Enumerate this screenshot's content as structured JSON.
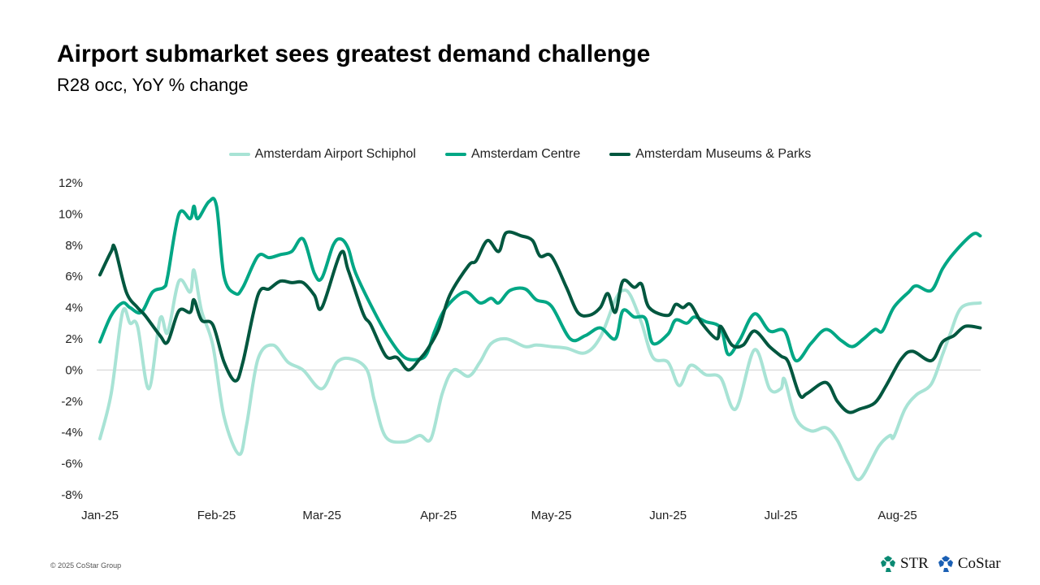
{
  "header": {
    "title": "Airport submarket sees greatest demand challenge",
    "subtitle": "R28 occ, YoY % change"
  },
  "footer": {
    "copyright": "© 2025 CoStar Group",
    "logos": [
      "STR",
      "CoStar"
    ]
  },
  "chart_data": {
    "type": "line",
    "title": "Airport submarket sees greatest demand challenge",
    "subtitle": "R28 occ, YoY % change",
    "xlabel": "",
    "ylabel": "",
    "ylim": [
      -8,
      12
    ],
    "yticks": [
      12,
      10,
      8,
      6,
      4,
      2,
      0,
      -2,
      -4,
      -6,
      -8
    ],
    "ytick_labels": [
      "12%",
      "10%",
      "8%",
      "6%",
      "4%",
      "2%",
      "0%",
      "-2%",
      "-4%",
      "-6%",
      "-8%"
    ],
    "xticks": [
      "2025-01-01",
      "2025-02-01",
      "2025-03-01",
      "2025-04-01",
      "2025-05-01",
      "2025-06-01",
      "2025-07-01",
      "2025-08-01"
    ],
    "xtick_labels": [
      "Jan-25",
      "Feb-25",
      "Mar-25",
      "Apr-25",
      "May-25",
      "Jun-25",
      "Jul-25",
      "Aug-25"
    ],
    "legend_placement": "top",
    "grid": false,
    "zero_line": true,
    "series": [
      {
        "name": "Amsterdam Airport Schiphol",
        "color": "#a8e3d5",
        "points": [
          [
            "2025-01-01",
            -4.4
          ],
          [
            "2025-01-04",
            -1.5
          ],
          [
            "2025-01-07",
            3.7
          ],
          [
            "2025-01-09",
            3.0
          ],
          [
            "2025-01-11",
            2.8
          ],
          [
            "2025-01-14",
            -1.2
          ],
          [
            "2025-01-17",
            3.3
          ],
          [
            "2025-01-19",
            2.4
          ],
          [
            "2025-01-22",
            5.7
          ],
          [
            "2025-01-25",
            5.0
          ],
          [
            "2025-01-26",
            6.4
          ],
          [
            "2025-01-28",
            3.8
          ],
          [
            "2025-01-31",
            1.6
          ],
          [
            "2025-02-03",
            -3.0
          ],
          [
            "2025-02-07",
            -5.4
          ],
          [
            "2025-02-09",
            -3.5
          ],
          [
            "2025-02-12",
            0.7
          ],
          [
            "2025-02-16",
            1.6
          ],
          [
            "2025-02-20",
            0.5
          ],
          [
            "2025-02-24",
            0.0
          ],
          [
            "2025-03-01",
            -1.2
          ],
          [
            "2025-03-05",
            0.5
          ],
          [
            "2025-03-09",
            0.7
          ],
          [
            "2025-03-13",
            0.0
          ],
          [
            "2025-03-15",
            -2.0
          ],
          [
            "2025-03-18",
            -4.3
          ],
          [
            "2025-03-23",
            -4.6
          ],
          [
            "2025-03-27",
            -4.2
          ],
          [
            "2025-03-30",
            -4.4
          ],
          [
            "2025-04-02",
            -1.5
          ],
          [
            "2025-04-05",
            0.0
          ],
          [
            "2025-04-09",
            -0.4
          ],
          [
            "2025-04-12",
            0.5
          ],
          [
            "2025-04-15",
            1.7
          ],
          [
            "2025-04-19",
            2.0
          ],
          [
            "2025-04-24",
            1.5
          ],
          [
            "2025-04-27",
            1.6
          ],
          [
            "2025-05-01",
            1.5
          ],
          [
            "2025-05-05",
            1.4
          ],
          [
            "2025-05-10",
            1.1
          ],
          [
            "2025-05-14",
            2.1
          ],
          [
            "2025-05-18",
            4.5
          ],
          [
            "2025-05-20",
            5.1
          ],
          [
            "2025-05-22",
            4.8
          ],
          [
            "2025-05-25",
            3.0
          ],
          [
            "2025-05-28",
            0.8
          ],
          [
            "2025-06-01",
            0.5
          ],
          [
            "2025-06-04",
            -1.0
          ],
          [
            "2025-06-07",
            0.3
          ],
          [
            "2025-06-11",
            -0.3
          ],
          [
            "2025-06-15",
            -0.5
          ],
          [
            "2025-06-19",
            -2.5
          ],
          [
            "2025-06-24",
            1.3
          ],
          [
            "2025-06-28",
            -1.2
          ],
          [
            "2025-07-01",
            -1.2
          ],
          [
            "2025-07-02",
            -0.6
          ],
          [
            "2025-07-05",
            -3.1
          ],
          [
            "2025-07-09",
            -3.9
          ],
          [
            "2025-07-13",
            -3.7
          ],
          [
            "2025-07-16",
            -4.5
          ],
          [
            "2025-07-19",
            -6.0
          ],
          [
            "2025-07-22",
            -7.0
          ],
          [
            "2025-07-27",
            -4.9
          ],
          [
            "2025-07-30",
            -4.2
          ],
          [
            "2025-07-31",
            -4.3
          ],
          [
            "2025-08-03",
            -2.5
          ],
          [
            "2025-08-06",
            -1.6
          ],
          [
            "2025-08-10",
            -0.9
          ],
          [
            "2025-08-13",
            1.0
          ],
          [
            "2025-08-15",
            2.3
          ],
          [
            "2025-08-18",
            4.0
          ],
          [
            "2025-08-23",
            4.3
          ]
        ]
      },
      {
        "name": "Amsterdam Centre",
        "color": "#00a785",
        "points": [
          [
            "2025-01-01",
            1.8
          ],
          [
            "2025-01-04",
            3.5
          ],
          [
            "2025-01-07",
            4.3
          ],
          [
            "2025-01-09",
            4.0
          ],
          [
            "2025-01-12",
            3.7
          ],
          [
            "2025-01-15",
            5.0
          ],
          [
            "2025-01-18",
            5.3
          ],
          [
            "2025-01-19",
            6.0
          ],
          [
            "2025-01-22",
            10.0
          ],
          [
            "2025-01-25",
            9.7
          ],
          [
            "2025-01-26",
            10.5
          ],
          [
            "2025-01-27",
            9.7
          ],
          [
            "2025-01-30",
            10.8
          ],
          [
            "2025-02-01",
            10.5
          ],
          [
            "2025-02-03",
            6.0
          ],
          [
            "2025-02-06",
            4.9
          ],
          [
            "2025-02-08",
            5.3
          ],
          [
            "2025-02-12",
            7.3
          ],
          [
            "2025-02-15",
            7.2
          ],
          [
            "2025-02-18",
            7.4
          ],
          [
            "2025-02-21",
            7.6
          ],
          [
            "2025-02-24",
            8.4
          ],
          [
            "2025-02-27",
            6.2
          ],
          [
            "2025-03-01",
            5.9
          ],
          [
            "2025-03-04",
            8.0
          ],
          [
            "2025-03-06",
            8.4
          ],
          [
            "2025-03-08",
            7.8
          ],
          [
            "2025-03-10",
            6.2
          ],
          [
            "2025-03-15",
            3.7
          ],
          [
            "2025-03-19",
            2.0
          ],
          [
            "2025-03-23",
            0.8
          ],
          [
            "2025-03-27",
            0.7
          ],
          [
            "2025-03-29",
            1.1
          ],
          [
            "2025-03-31",
            2.5
          ],
          [
            "2025-04-03",
            4.0
          ],
          [
            "2025-04-08",
            5.0
          ],
          [
            "2025-04-12",
            4.3
          ],
          [
            "2025-04-15",
            4.6
          ],
          [
            "2025-04-17",
            4.3
          ],
          [
            "2025-04-20",
            5.1
          ],
          [
            "2025-04-24",
            5.2
          ],
          [
            "2025-04-27",
            4.5
          ],
          [
            "2025-05-01",
            4.1
          ],
          [
            "2025-05-06",
            2.0
          ],
          [
            "2025-05-10",
            2.2
          ],
          [
            "2025-05-14",
            2.7
          ],
          [
            "2025-05-18",
            2.0
          ],
          [
            "2025-05-20",
            3.8
          ],
          [
            "2025-05-23",
            3.4
          ],
          [
            "2025-05-26",
            3.3
          ],
          [
            "2025-05-28",
            1.7
          ],
          [
            "2025-06-01",
            2.3
          ],
          [
            "2025-06-03",
            3.2
          ],
          [
            "2025-06-06",
            3.0
          ],
          [
            "2025-06-08",
            3.4
          ],
          [
            "2025-06-11",
            3.1
          ],
          [
            "2025-06-15",
            2.7
          ],
          [
            "2025-06-17",
            1.0
          ],
          [
            "2025-06-20",
            1.9
          ],
          [
            "2025-06-24",
            3.6
          ],
          [
            "2025-06-28",
            2.5
          ],
          [
            "2025-07-02",
            2.5
          ],
          [
            "2025-07-05",
            0.6
          ],
          [
            "2025-07-09",
            1.7
          ],
          [
            "2025-07-13",
            2.6
          ],
          [
            "2025-07-17",
            1.9
          ],
          [
            "2025-07-20",
            1.5
          ],
          [
            "2025-07-23",
            2.0
          ],
          [
            "2025-07-26",
            2.6
          ],
          [
            "2025-07-28",
            2.5
          ],
          [
            "2025-07-31",
            4.0
          ],
          [
            "2025-08-04",
            5.0
          ],
          [
            "2025-08-06",
            5.4
          ],
          [
            "2025-08-10",
            5.1
          ],
          [
            "2025-08-13",
            6.5
          ],
          [
            "2025-08-16",
            7.5
          ],
          [
            "2025-08-21",
            8.7
          ],
          [
            "2025-08-23",
            8.6
          ]
        ]
      },
      {
        "name": "Amsterdam Museums & Parks",
        "color": "#00573f",
        "points": [
          [
            "2025-01-01",
            6.1
          ],
          [
            "2025-01-04",
            7.6
          ],
          [
            "2025-01-05",
            7.8
          ],
          [
            "2025-01-08",
            5.0
          ],
          [
            "2025-01-11",
            4.0
          ],
          [
            "2025-01-13",
            3.5
          ],
          [
            "2025-01-17",
            2.2
          ],
          [
            "2025-01-19",
            1.8
          ],
          [
            "2025-01-22",
            3.8
          ],
          [
            "2025-01-25",
            3.7
          ],
          [
            "2025-01-26",
            4.5
          ],
          [
            "2025-01-28",
            3.2
          ],
          [
            "2025-01-31",
            2.9
          ],
          [
            "2025-02-03",
            0.5
          ],
          [
            "2025-02-06",
            -0.7
          ],
          [
            "2025-02-08",
            0.5
          ],
          [
            "2025-02-12",
            4.8
          ],
          [
            "2025-02-15",
            5.2
          ],
          [
            "2025-02-18",
            5.7
          ],
          [
            "2025-02-21",
            5.6
          ],
          [
            "2025-02-24",
            5.6
          ],
          [
            "2025-02-27",
            4.8
          ],
          [
            "2025-03-01",
            4.0
          ],
          [
            "2025-03-06",
            7.5
          ],
          [
            "2025-03-08",
            6.4
          ],
          [
            "2025-03-12",
            3.6
          ],
          [
            "2025-03-14",
            2.9
          ],
          [
            "2025-03-18",
            0.9
          ],
          [
            "2025-03-21",
            0.8
          ],
          [
            "2025-03-24",
            0.0
          ],
          [
            "2025-03-27",
            0.7
          ],
          [
            "2025-03-29",
            1.3
          ],
          [
            "2025-04-01",
            2.6
          ],
          [
            "2025-04-04",
            4.8
          ],
          [
            "2025-04-09",
            6.7
          ],
          [
            "2025-04-11",
            7.0
          ],
          [
            "2025-04-14",
            8.3
          ],
          [
            "2025-04-17",
            7.6
          ],
          [
            "2025-04-19",
            8.8
          ],
          [
            "2025-04-23",
            8.6
          ],
          [
            "2025-04-26",
            8.3
          ],
          [
            "2025-04-28",
            7.3
          ],
          [
            "2025-05-01",
            7.3
          ],
          [
            "2025-05-05",
            5.3
          ],
          [
            "2025-05-08",
            3.7
          ],
          [
            "2025-05-11",
            3.5
          ],
          [
            "2025-05-14",
            4.0
          ],
          [
            "2025-05-16",
            4.9
          ],
          [
            "2025-05-18",
            3.7
          ],
          [
            "2025-05-20",
            5.7
          ],
          [
            "2025-05-23",
            5.3
          ],
          [
            "2025-05-25",
            5.5
          ],
          [
            "2025-05-27",
            4.0
          ],
          [
            "2025-06-01",
            3.5
          ],
          [
            "2025-06-03",
            4.2
          ],
          [
            "2025-06-05",
            4.0
          ],
          [
            "2025-06-07",
            4.2
          ],
          [
            "2025-06-10",
            3.0
          ],
          [
            "2025-06-14",
            2.0
          ],
          [
            "2025-06-15",
            2.8
          ],
          [
            "2025-06-18",
            1.6
          ],
          [
            "2025-06-21",
            1.6
          ],
          [
            "2025-06-24",
            2.5
          ],
          [
            "2025-06-28",
            1.5
          ],
          [
            "2025-07-01",
            0.9
          ],
          [
            "2025-07-03",
            0.5
          ],
          [
            "2025-07-06",
            -1.6
          ],
          [
            "2025-07-08",
            -1.5
          ],
          [
            "2025-07-13",
            -0.8
          ],
          [
            "2025-07-16",
            -2.0
          ],
          [
            "2025-07-19",
            -2.7
          ],
          [
            "2025-07-22",
            -2.5
          ],
          [
            "2025-07-26",
            -2.1
          ],
          [
            "2025-07-29",
            -1.0
          ],
          [
            "2025-08-02",
            0.7
          ],
          [
            "2025-08-05",
            1.2
          ],
          [
            "2025-08-10",
            0.6
          ],
          [
            "2025-08-13",
            1.8
          ],
          [
            "2025-08-16",
            2.2
          ],
          [
            "2025-08-19",
            2.8
          ],
          [
            "2025-08-23",
            2.7
          ]
        ]
      }
    ]
  }
}
